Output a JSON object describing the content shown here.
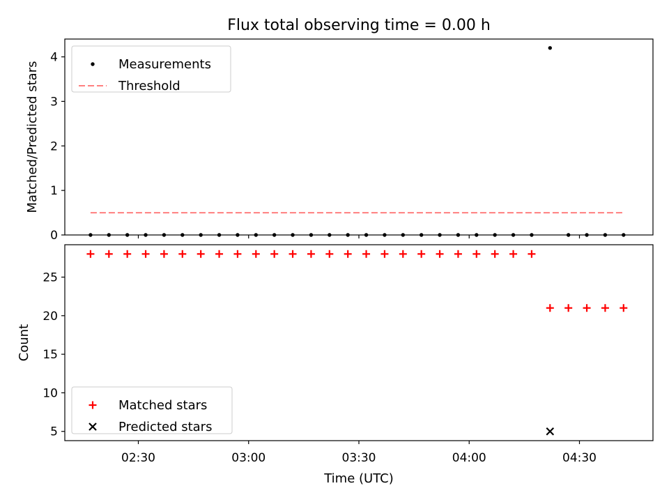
{
  "title": "Flux total observing time = 0.00 h",
  "chart_data": [
    {
      "type": "scatter",
      "ylabel": "Matched/Predicted stars",
      "ylim": [
        0,
        4.4
      ],
      "yticks": [
        0,
        1,
        2,
        3,
        4
      ],
      "grid": false,
      "legend_placement": "top-left",
      "series": [
        {
          "name": "Measurements",
          "kind": "scatter",
          "color": "#000000",
          "marker": "dot",
          "points": [
            [
              "02:17",
              0
            ],
            [
              "02:22",
              0
            ],
            [
              "02:27",
              0
            ],
            [
              "02:32",
              0
            ],
            [
              "02:37",
              0
            ],
            [
              "02:42",
              0
            ],
            [
              "02:47",
              0
            ],
            [
              "02:52",
              0
            ],
            [
              "02:57",
              0
            ],
            [
              "03:02",
              0
            ],
            [
              "03:07",
              0
            ],
            [
              "03:12",
              0
            ],
            [
              "03:17",
              0
            ],
            [
              "03:22",
              0
            ],
            [
              "03:27",
              0
            ],
            [
              "03:32",
              0
            ],
            [
              "03:37",
              0
            ],
            [
              "03:42",
              0
            ],
            [
              "03:47",
              0
            ],
            [
              "03:52",
              0
            ],
            [
              "03:57",
              0
            ],
            [
              "04:02",
              0
            ],
            [
              "04:07",
              0
            ],
            [
              "04:12",
              0
            ],
            [
              "04:17",
              0
            ],
            [
              "04:22",
              4.2
            ],
            [
              "04:27",
              0
            ],
            [
              "04:32",
              0
            ],
            [
              "04:37",
              0
            ],
            [
              "04:42",
              0
            ]
          ]
        },
        {
          "name": "Threshold",
          "kind": "line",
          "color": "#ff7f7f",
          "style": "dashed",
          "points": [
            [
              "02:17",
              0.5
            ],
            [
              "04:42",
              0.5
            ]
          ]
        }
      ]
    },
    {
      "type": "scatter",
      "xlabel": "Time (UTC)",
      "ylabel": "Count",
      "ylim": [
        3.8,
        29.2
      ],
      "yticks": [
        5,
        10,
        15,
        20,
        25
      ],
      "xlim": [
        "02:10",
        "04:50"
      ],
      "xticks": [
        "02:30",
        "03:00",
        "03:30",
        "04:00",
        "04:30"
      ],
      "grid": false,
      "legend_placement": "bottom-left",
      "series": [
        {
          "name": "Matched stars",
          "kind": "scatter",
          "color": "#ff0000",
          "marker": "plus",
          "points": [
            [
              "02:17",
              28
            ],
            [
              "02:22",
              28
            ],
            [
              "02:27",
              28
            ],
            [
              "02:32",
              28
            ],
            [
              "02:37",
              28
            ],
            [
              "02:42",
              28
            ],
            [
              "02:47",
              28
            ],
            [
              "02:52",
              28
            ],
            [
              "02:57",
              28
            ],
            [
              "03:02",
              28
            ],
            [
              "03:07",
              28
            ],
            [
              "03:12",
              28
            ],
            [
              "03:17",
              28
            ],
            [
              "03:22",
              28
            ],
            [
              "03:27",
              28
            ],
            [
              "03:32",
              28
            ],
            [
              "03:37",
              28
            ],
            [
              "03:42",
              28
            ],
            [
              "03:47",
              28
            ],
            [
              "03:52",
              28
            ],
            [
              "03:57",
              28
            ],
            [
              "04:02",
              28
            ],
            [
              "04:07",
              28
            ],
            [
              "04:12",
              28
            ],
            [
              "04:17",
              28
            ],
            [
              "04:22",
              21
            ],
            [
              "04:27",
              21
            ],
            [
              "04:32",
              21
            ],
            [
              "04:37",
              21
            ],
            [
              "04:42",
              21
            ]
          ]
        },
        {
          "name": "Predicted stars",
          "kind": "scatter",
          "color": "#000000",
          "marker": "x",
          "points": [
            [
              "04:22",
              5
            ]
          ]
        }
      ]
    }
  ]
}
